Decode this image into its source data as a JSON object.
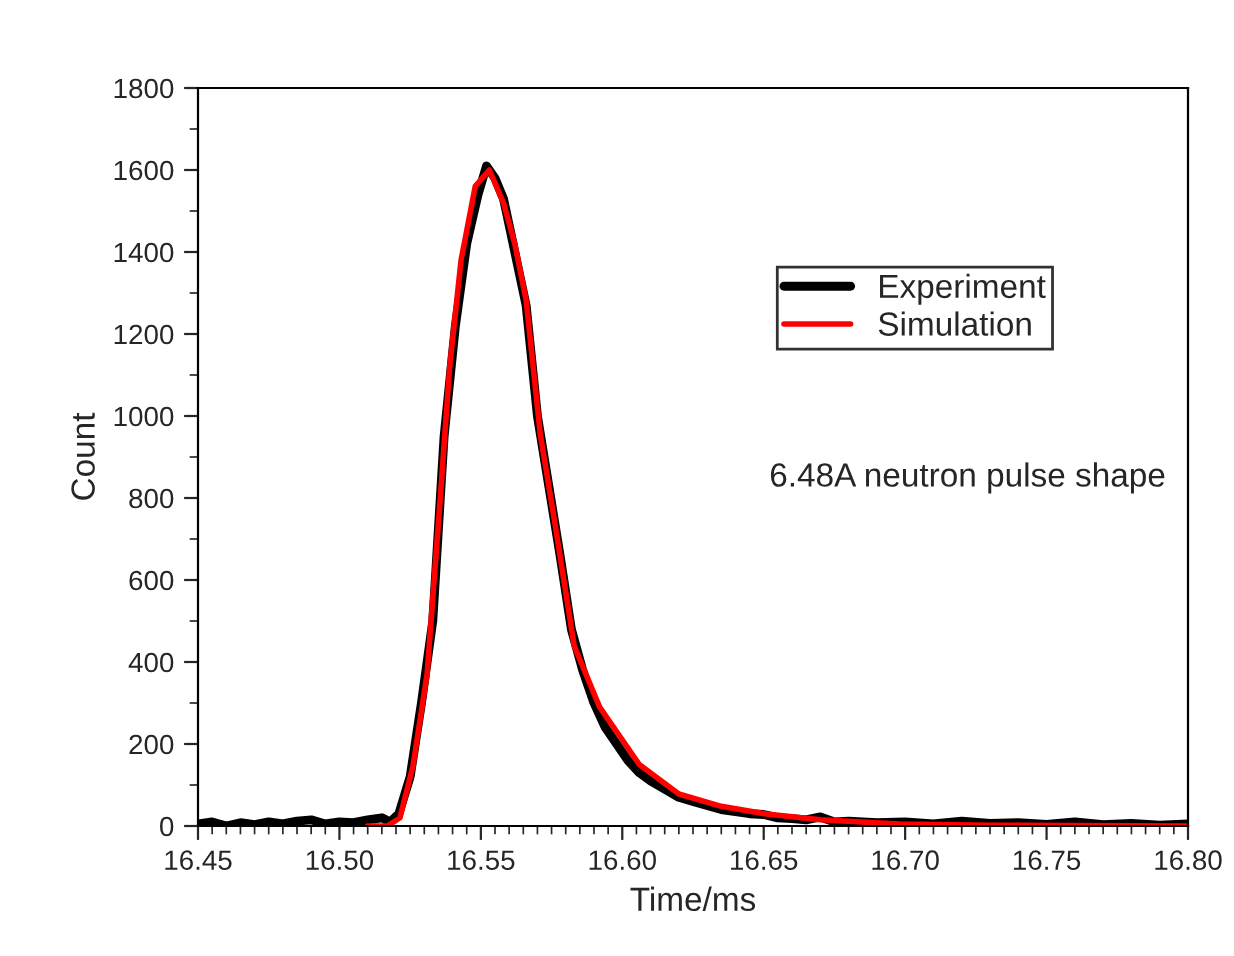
{
  "chart_data": {
    "type": "line",
    "xlabel": "Time/ms",
    "ylabel": "Count",
    "xlim": [
      16.45,
      16.8
    ],
    "ylim": [
      0,
      1800
    ],
    "xticks": [
      {
        "value": 16.45,
        "label": "16.45"
      },
      {
        "value": 16.5,
        "label": "16.50"
      },
      {
        "value": 16.55,
        "label": "16.55"
      },
      {
        "value": 16.6,
        "label": "16.60"
      },
      {
        "value": 16.65,
        "label": "16.65"
      },
      {
        "value": 16.7,
        "label": "16.70"
      },
      {
        "value": 16.75,
        "label": "16.75"
      },
      {
        "value": 16.8,
        "label": "16.80"
      }
    ],
    "yticks": [
      0,
      200,
      400,
      600,
      800,
      1000,
      1200,
      1400,
      1600,
      1800
    ],
    "grid": false,
    "legend": "top right",
    "annotations": [
      "6.48A neutron pulse shape"
    ],
    "series": [
      {
        "name": "Experiment",
        "color": "#000000",
        "x": [
          16.45,
          16.455,
          16.46,
          16.465,
          16.47,
          16.475,
          16.48,
          16.485,
          16.49,
          16.495,
          16.5,
          16.505,
          16.51,
          16.515,
          16.518,
          16.521,
          16.525,
          16.529,
          16.533,
          16.537,
          16.541,
          16.545,
          16.549,
          16.552,
          16.555,
          16.558,
          16.562,
          16.566,
          16.57,
          16.574,
          16.578,
          16.582,
          16.586,
          16.59,
          16.594,
          16.598,
          16.602,
          16.606,
          16.61,
          16.615,
          16.62,
          16.625,
          16.63,
          16.635,
          16.64,
          16.645,
          16.65,
          16.655,
          16.66,
          16.665,
          16.67,
          16.675,
          16.68,
          16.69,
          16.7,
          16.71,
          16.72,
          16.73,
          16.74,
          16.75,
          16.76,
          16.77,
          16.78,
          16.79,
          16.8
        ],
        "values": [
          5,
          10,
          0,
          8,
          3,
          10,
          5,
          12,
          15,
          5,
          10,
          8,
          15,
          20,
          10,
          30,
          120,
          300,
          500,
          950,
          1220,
          1420,
          1540,
          1610,
          1580,
          1530,
          1400,
          1270,
          1000,
          830,
          660,
          480,
          380,
          300,
          240,
          200,
          160,
          130,
          110,
          90,
          70,
          60,
          50,
          40,
          35,
          30,
          28,
          20,
          18,
          15,
          22,
          10,
          12,
          8,
          10,
          5,
          12,
          6,
          8,
          4,
          10,
          3,
          6,
          2,
          5
        ]
      },
      {
        "name": "Simulation",
        "color": "#ff0000",
        "x": [
          16.51,
          16.517,
          16.5214,
          16.526,
          16.531,
          16.5356,
          16.539,
          16.543,
          16.548,
          16.553,
          16.558,
          16.562,
          16.566,
          16.571,
          16.576,
          16.583,
          16.592,
          16.606,
          16.62,
          16.635,
          16.651,
          16.67,
          16.698,
          16.73,
          16.76,
          16.8
        ],
        "values": [
          0,
          0,
          20,
          146,
          371,
          795,
          1122,
          1380,
          1560,
          1600,
          1520,
          1420,
          1283,
          956,
          746,
          439,
          290,
          150,
          78,
          48,
          29,
          15,
          5,
          2,
          1,
          0
        ]
      }
    ]
  }
}
